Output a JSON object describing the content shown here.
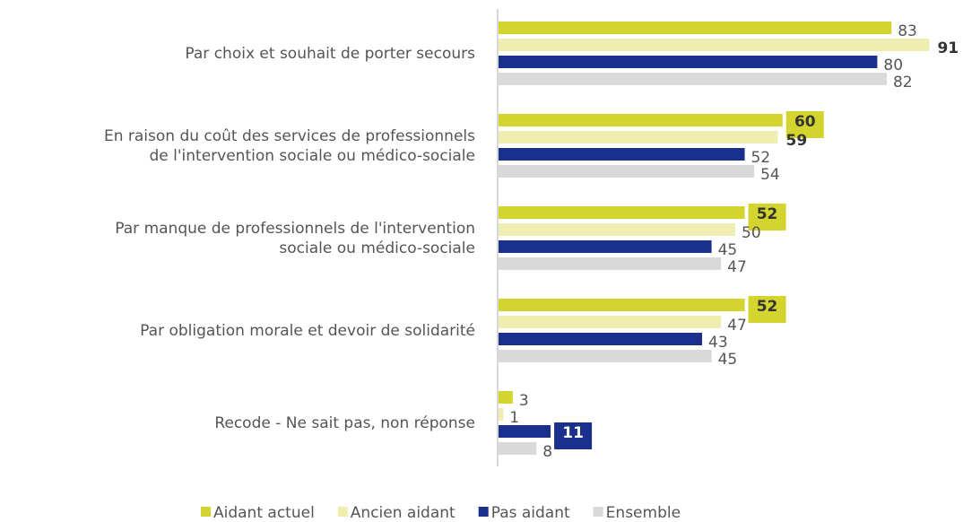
{
  "chart_data": {
    "type": "bar",
    "orientation": "horizontal",
    "categories": [
      "Par choix et souhait de porter secours",
      "En raison du coût des services de professionnels\nde l'intervention sociale ou médico-sociale",
      "Par manque de professionnels de l'intervention\nsociale ou médico-sociale",
      "Par obligation morale et devoir de solidarité",
      "Recode - Ne sait pas, non réponse"
    ],
    "series": [
      {
        "name": "Aidant actuel",
        "color": "#d4d42e",
        "values": [
          83,
          60,
          52,
          52,
          3
        ],
        "bold": [
          false,
          true,
          true,
          true,
          false
        ],
        "boxed": [
          false,
          true,
          true,
          true,
          false
        ]
      },
      {
        "name": "Ancien aidant",
        "color": "#efeeb0",
        "values": [
          91,
          59,
          50,
          47,
          1
        ],
        "bold": [
          true,
          true,
          false,
          false,
          false
        ],
        "boxed": [
          false,
          false,
          false,
          false,
          false
        ]
      },
      {
        "name": "Pas aidant",
        "color": "#1b2f8c",
        "values": [
          80,
          52,
          45,
          43,
          11
        ],
        "bold": [
          false,
          false,
          false,
          false,
          true
        ],
        "boxed": [
          false,
          false,
          false,
          false,
          true
        ]
      },
      {
        "name": "Ensemble",
        "color": "#d9d9d9",
        "values": [
          82,
          54,
          47,
          45,
          8
        ],
        "bold": [
          false,
          false,
          false,
          false,
          false
        ],
        "boxed": [
          false,
          false,
          false,
          false,
          false
        ]
      }
    ],
    "legend": "bottom"
  }
}
